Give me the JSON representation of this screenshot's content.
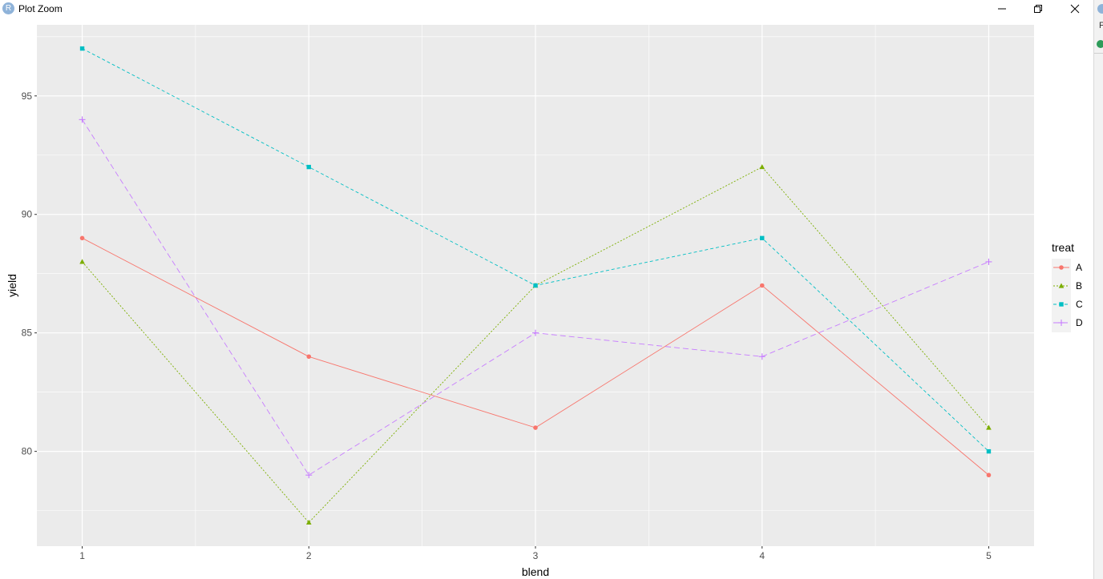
{
  "window": {
    "title": "Plot Zoom",
    "logo_letter": "R",
    "side_letter": "F"
  },
  "colors": {
    "panel_bg": "#EBEBEB",
    "grid": "#FFFFFF",
    "A": "#F8766D",
    "B": "#7CAE00",
    "C": "#00BFC4",
    "D": "#C77CFF"
  },
  "chart_data": {
    "type": "line",
    "title": "",
    "xlabel": "blend",
    "ylabel": "yield",
    "x": [
      1,
      2,
      3,
      4,
      5
    ],
    "x_ticks": [
      "1",
      "2",
      "3",
      "4",
      "5"
    ],
    "y_ticks": [
      "80",
      "85",
      "90",
      "95"
    ],
    "xlim": [
      0.8,
      5.2
    ],
    "ylim": [
      76.0,
      98.0
    ],
    "grid": true,
    "legend": {
      "title": "treat",
      "position": "right"
    },
    "series": [
      {
        "name": "A",
        "color": "#F8766D",
        "linetype": "solid",
        "marker": "circle",
        "values": [
          89,
          84,
          81,
          87,
          79
        ]
      },
      {
        "name": "B",
        "color": "#7CAE00",
        "linetype": "dotted",
        "marker": "triangle",
        "values": [
          88,
          77,
          87,
          92,
          81
        ]
      },
      {
        "name": "C",
        "color": "#00BFC4",
        "linetype": "dashed",
        "marker": "square",
        "values": [
          97,
          92,
          87,
          89,
          80
        ]
      },
      {
        "name": "D",
        "color": "#C77CFF",
        "linetype": "longdash",
        "marker": "plus",
        "values": [
          94,
          79,
          85,
          84,
          88
        ]
      }
    ]
  }
}
